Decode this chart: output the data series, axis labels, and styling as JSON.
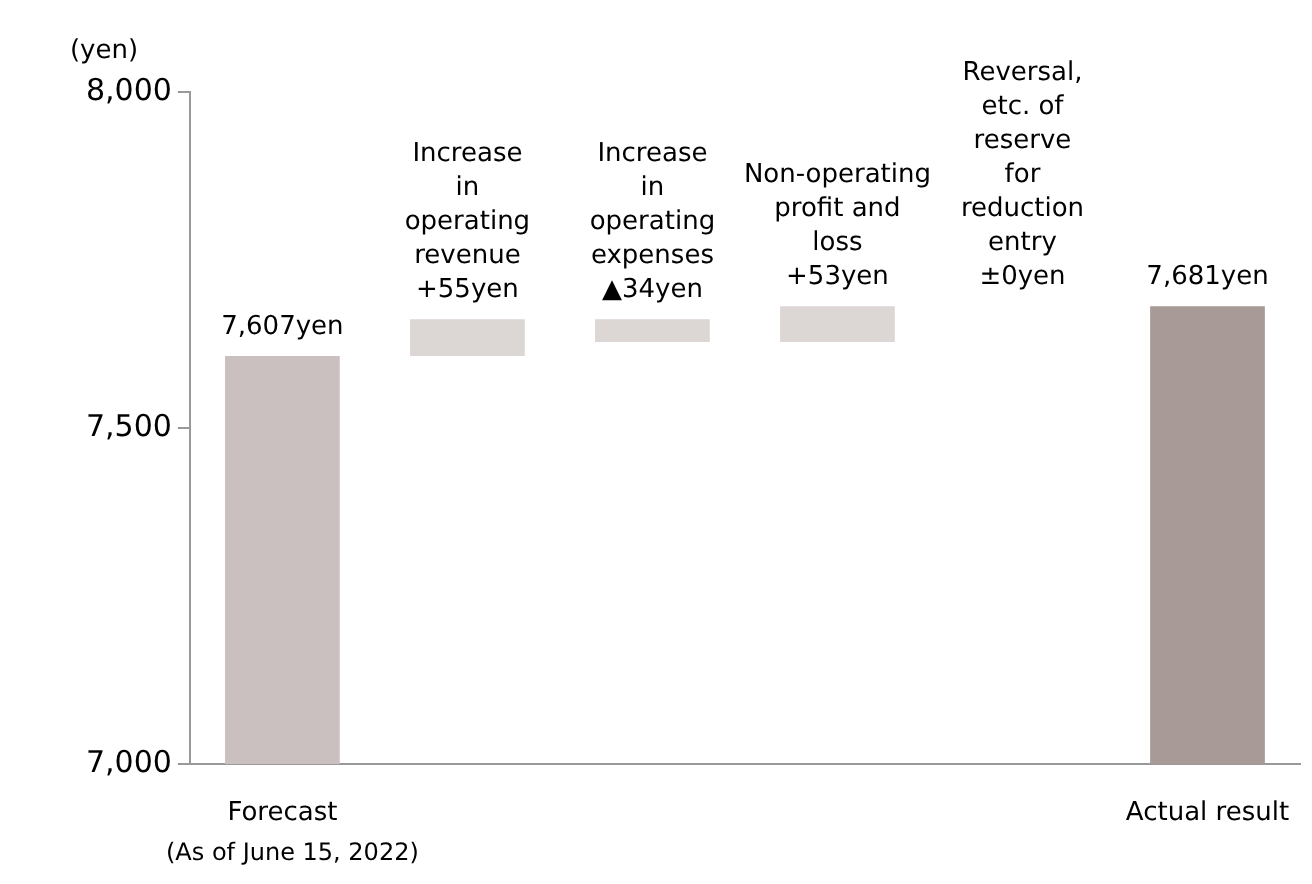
{
  "chart_data": {
    "type": "bar",
    "ylabel": "(yen)",
    "categories": [
      "Forecast (As of June 15, 2022)",
      "Increase in operating revenue",
      "Increase in operating expenses",
      "Non-operating profit and loss",
      "Reversal, etc. of reserve for reduction entry",
      "Actual result"
    ],
    "values": [
      7607,
      55,
      -34,
      53,
      null,
      7681
    ],
    "base": [
      null,
      7607,
      7662,
      7628,
      null,
      null
    ],
    "colors": [
      "#cbc0c0",
      "#dcd6d4",
      "#dcd6d4",
      "#dcd6d4",
      "#dcd6d4",
      "#a89a96"
    ],
    "value_labels": [
      "7,607yen",
      "+55yen",
      "▲34yen",
      "+53yen",
      "±0yen",
      "7,681yen"
    ],
    "ylim": [
      7000,
      8000
    ],
    "yticks": [
      {
        "value": 7000,
        "label": "7,000"
      },
      {
        "value": 7500,
        "label": "7,500"
      },
      {
        "value": 8000,
        "label": "8,000"
      }
    ],
    "grid": false,
    "legend": false
  }
}
